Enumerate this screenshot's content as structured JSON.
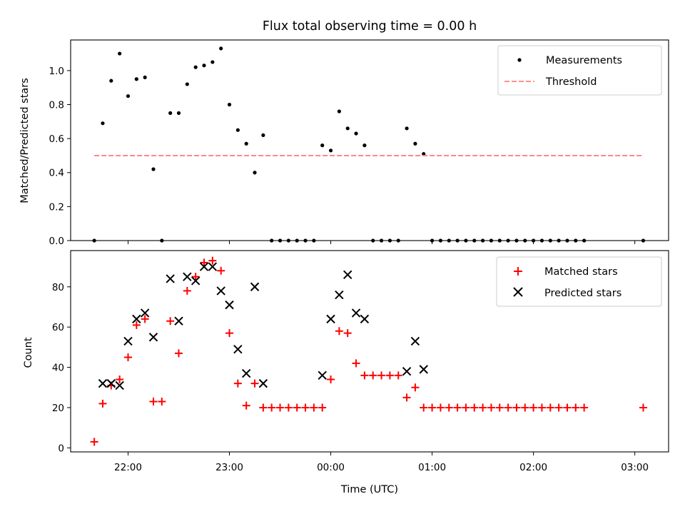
{
  "chart_data": [
    {
      "type": "scatter",
      "title": "Flux total observing time = 0.00 h",
      "xlabel": "",
      "ylabel": "Matched/Predicted stars",
      "xlim": [
        "21:26",
        "03:20"
      ],
      "ylim": [
        0,
        1.18
      ],
      "x_ticks": [
        "22:00",
        "23:00",
        "00:00",
        "01:00",
        "02:00",
        "03:00"
      ],
      "x_tick_labels_visible": false,
      "y_ticks": [
        "0.0",
        "0.2",
        "0.4",
        "0.6",
        "0.8",
        "1.0"
      ],
      "legend_position": "top-right",
      "series": [
        {
          "name": "Measurements",
          "marker": "dot",
          "color": "#000000",
          "points": [
            {
              "x": "21:40",
              "y": 0.0
            },
            {
              "x": "21:45",
              "y": 0.69
            },
            {
              "x": "21:50",
              "y": 0.94
            },
            {
              "x": "21:55",
              "y": 1.1
            },
            {
              "x": "22:00",
              "y": 0.85
            },
            {
              "x": "22:05",
              "y": 0.95
            },
            {
              "x": "22:10",
              "y": 0.96
            },
            {
              "x": "22:15",
              "y": 0.42
            },
            {
              "x": "22:20",
              "y": 0.0
            },
            {
              "x": "22:25",
              "y": 0.75
            },
            {
              "x": "22:30",
              "y": 0.75
            },
            {
              "x": "22:35",
              "y": 0.92
            },
            {
              "x": "22:40",
              "y": 1.02
            },
            {
              "x": "22:45",
              "y": 1.03
            },
            {
              "x": "22:50",
              "y": 1.05
            },
            {
              "x": "22:55",
              "y": 1.13
            },
            {
              "x": "23:00",
              "y": 0.8
            },
            {
              "x": "23:05",
              "y": 0.65
            },
            {
              "x": "23:10",
              "y": 0.57
            },
            {
              "x": "23:15",
              "y": 0.4
            },
            {
              "x": "23:20",
              "y": 0.62
            },
            {
              "x": "23:25",
              "y": 0.0
            },
            {
              "x": "23:30",
              "y": 0.0
            },
            {
              "x": "23:35",
              "y": 0.0
            },
            {
              "x": "23:40",
              "y": 0.0
            },
            {
              "x": "23:45",
              "y": 0.0
            },
            {
              "x": "23:50",
              "y": 0.0
            },
            {
              "x": "23:55",
              "y": 0.56
            },
            {
              "x": "00:00",
              "y": 0.53
            },
            {
              "x": "00:05",
              "y": 0.76
            },
            {
              "x": "00:10",
              "y": 0.66
            },
            {
              "x": "00:15",
              "y": 0.63
            },
            {
              "x": "00:20",
              "y": 0.56
            },
            {
              "x": "00:25",
              "y": 0.0
            },
            {
              "x": "00:30",
              "y": 0.0
            },
            {
              "x": "00:35",
              "y": 0.0
            },
            {
              "x": "00:40",
              "y": 0.0
            },
            {
              "x": "00:45",
              "y": 0.66
            },
            {
              "x": "00:50",
              "y": 0.57
            },
            {
              "x": "00:55",
              "y": 0.51
            },
            {
              "x": "01:00",
              "y": 0.0
            },
            {
              "x": "01:05",
              "y": 0.0
            },
            {
              "x": "01:10",
              "y": 0.0
            },
            {
              "x": "01:15",
              "y": 0.0
            },
            {
              "x": "01:20",
              "y": 0.0
            },
            {
              "x": "01:25",
              "y": 0.0
            },
            {
              "x": "01:30",
              "y": 0.0
            },
            {
              "x": "01:35",
              "y": 0.0
            },
            {
              "x": "01:40",
              "y": 0.0
            },
            {
              "x": "01:45",
              "y": 0.0
            },
            {
              "x": "01:50",
              "y": 0.0
            },
            {
              "x": "01:55",
              "y": 0.0
            },
            {
              "x": "02:00",
              "y": 0.0
            },
            {
              "x": "02:05",
              "y": 0.0
            },
            {
              "x": "02:10",
              "y": 0.0
            },
            {
              "x": "02:15",
              "y": 0.0
            },
            {
              "x": "02:20",
              "y": 0.0
            },
            {
              "x": "02:25",
              "y": 0.0
            },
            {
              "x": "02:30",
              "y": 0.0
            },
            {
              "x": "03:05",
              "y": 0.0
            }
          ]
        },
        {
          "name": "Threshold",
          "marker": "dashed-line",
          "color": "#ff7f7f",
          "points": [
            {
              "x": "21:40",
              "y": 0.5
            },
            {
              "x": "03:05",
              "y": 0.5
            }
          ]
        }
      ]
    },
    {
      "type": "scatter",
      "title": "",
      "xlabel": "Time (UTC)",
      "ylabel": "Count",
      "xlim": [
        "21:26",
        "03:20"
      ],
      "ylim": [
        -2,
        98
      ],
      "x_ticks": [
        "22:00",
        "23:00",
        "00:00",
        "01:00",
        "02:00",
        "03:00"
      ],
      "y_ticks": [
        "0",
        "20",
        "40",
        "60",
        "80"
      ],
      "legend_position": "top-right",
      "series": [
        {
          "name": "Matched stars",
          "marker": "plus",
          "color": "#ff0000",
          "points": [
            {
              "x": "21:40",
              "y": 3
            },
            {
              "x": "21:45",
              "y": 22
            },
            {
              "x": "21:50",
              "y": 31
            },
            {
              "x": "21:55",
              "y": 34
            },
            {
              "x": "22:00",
              "y": 45
            },
            {
              "x": "22:05",
              "y": 61
            },
            {
              "x": "22:10",
              "y": 64
            },
            {
              "x": "22:15",
              "y": 23
            },
            {
              "x": "22:20",
              "y": 23
            },
            {
              "x": "22:25",
              "y": 63
            },
            {
              "x": "22:30",
              "y": 47
            },
            {
              "x": "22:35",
              "y": 78
            },
            {
              "x": "22:40",
              "y": 85
            },
            {
              "x": "22:45",
              "y": 92
            },
            {
              "x": "22:50",
              "y": 93
            },
            {
              "x": "22:55",
              "y": 88
            },
            {
              "x": "23:00",
              "y": 57
            },
            {
              "x": "23:05",
              "y": 32
            },
            {
              "x": "23:10",
              "y": 21
            },
            {
              "x": "23:15",
              "y": 32
            },
            {
              "x": "23:20",
              "y": 20
            },
            {
              "x": "23:25",
              "y": 20
            },
            {
              "x": "23:30",
              "y": 20
            },
            {
              "x": "23:35",
              "y": 20
            },
            {
              "x": "23:40",
              "y": 20
            },
            {
              "x": "23:45",
              "y": 20
            },
            {
              "x": "23:50",
              "y": 20
            },
            {
              "x": "23:55",
              "y": 20
            },
            {
              "x": "00:00",
              "y": 34
            },
            {
              "x": "00:05",
              "y": 58
            },
            {
              "x": "00:10",
              "y": 57
            },
            {
              "x": "00:15",
              "y": 42
            },
            {
              "x": "00:20",
              "y": 36
            },
            {
              "x": "00:25",
              "y": 36
            },
            {
              "x": "00:30",
              "y": 36
            },
            {
              "x": "00:35",
              "y": 36
            },
            {
              "x": "00:40",
              "y": 36
            },
            {
              "x": "00:45",
              "y": 25
            },
            {
              "x": "00:50",
              "y": 30
            },
            {
              "x": "00:55",
              "y": 20
            },
            {
              "x": "01:00",
              "y": 20
            },
            {
              "x": "01:05",
              "y": 20
            },
            {
              "x": "01:10",
              "y": 20
            },
            {
              "x": "01:15",
              "y": 20
            },
            {
              "x": "01:20",
              "y": 20
            },
            {
              "x": "01:25",
              "y": 20
            },
            {
              "x": "01:30",
              "y": 20
            },
            {
              "x": "01:35",
              "y": 20
            },
            {
              "x": "01:40",
              "y": 20
            },
            {
              "x": "01:45",
              "y": 20
            },
            {
              "x": "01:50",
              "y": 20
            },
            {
              "x": "01:55",
              "y": 20
            },
            {
              "x": "02:00",
              "y": 20
            },
            {
              "x": "02:05",
              "y": 20
            },
            {
              "x": "02:10",
              "y": 20
            },
            {
              "x": "02:15",
              "y": 20
            },
            {
              "x": "02:20",
              "y": 20
            },
            {
              "x": "02:25",
              "y": 20
            },
            {
              "x": "02:30",
              "y": 20
            },
            {
              "x": "03:05",
              "y": 20
            }
          ]
        },
        {
          "name": "Predicted stars",
          "marker": "x",
          "color": "#000000",
          "points": [
            {
              "x": "21:45",
              "y": 32
            },
            {
              "x": "21:50",
              "y": 32
            },
            {
              "x": "21:55",
              "y": 31
            },
            {
              "x": "22:00",
              "y": 53
            },
            {
              "x": "22:05",
              "y": 64
            },
            {
              "x": "22:10",
              "y": 67
            },
            {
              "x": "22:15",
              "y": 55
            },
            {
              "x": "22:25",
              "y": 84
            },
            {
              "x": "22:30",
              "y": 63
            },
            {
              "x": "22:35",
              "y": 85
            },
            {
              "x": "22:40",
              "y": 83
            },
            {
              "x": "22:45",
              "y": 90
            },
            {
              "x": "22:50",
              "y": 90
            },
            {
              "x": "22:55",
              "y": 78
            },
            {
              "x": "23:00",
              "y": 71
            },
            {
              "x": "23:05",
              "y": 49
            },
            {
              "x": "23:10",
              "y": 37
            },
            {
              "x": "23:15",
              "y": 80
            },
            {
              "x": "23:20",
              "y": 32
            },
            {
              "x": "23:55",
              "y": 36
            },
            {
              "x": "00:00",
              "y": 64
            },
            {
              "x": "00:05",
              "y": 76
            },
            {
              "x": "00:10",
              "y": 86
            },
            {
              "x": "00:15",
              "y": 67
            },
            {
              "x": "00:20",
              "y": 64
            },
            {
              "x": "00:45",
              "y": 38
            },
            {
              "x": "00:50",
              "y": 53
            },
            {
              "x": "00:55",
              "y": 39
            }
          ]
        }
      ]
    }
  ]
}
